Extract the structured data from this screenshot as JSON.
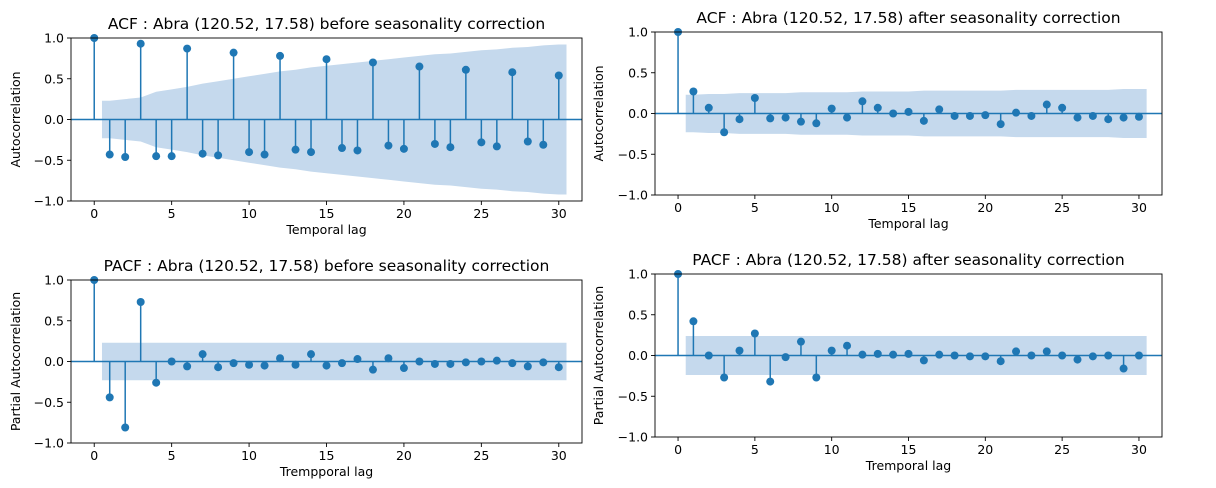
{
  "colors": {
    "stem": "#1f77b4",
    "conf_band": "#c5d9ed",
    "zero_line": "#1f77b4"
  },
  "chart_data": [
    {
      "type": "stem",
      "title": "ACF : Abra (120.52, 17.58) before seasonality correction",
      "xlabel": "Temporal lag",
      "ylabel": "Autocorrelation",
      "xlim": [
        -1.5,
        31.5
      ],
      "ylim": [
        -1.0,
        1.0
      ],
      "xticks": [
        0,
        5,
        10,
        15,
        20,
        25,
        30
      ],
      "xtick_labels": [
        "0",
        "5",
        "10",
        "15",
        "20",
        "25",
        "30"
      ],
      "yticks": [
        -1.0,
        -0.5,
        0.0,
        0.5,
        1.0
      ],
      "ytick_labels": [
        "−1.0",
        "−0.5",
        "0.0",
        "0.5",
        "1.0"
      ],
      "x": [
        0,
        1,
        2,
        3,
        4,
        5,
        6,
        7,
        8,
        9,
        10,
        11,
        12,
        13,
        14,
        15,
        16,
        17,
        18,
        19,
        20,
        21,
        22,
        23,
        24,
        25,
        26,
        27,
        28,
        29,
        30
      ],
      "values": [
        1.0,
        -0.43,
        -0.46,
        0.93,
        -0.45,
        -0.45,
        0.87,
        -0.42,
        -0.44,
        0.82,
        -0.4,
        -0.43,
        0.78,
        -0.37,
        -0.4,
        0.74,
        -0.35,
        -0.38,
        0.7,
        -0.32,
        -0.36,
        0.65,
        -0.3,
        -0.34,
        0.61,
        -0.28,
        -0.33,
        0.58,
        -0.27,
        -0.31,
        0.54
      ],
      "conf_band": [
        0.0,
        0.23,
        0.25,
        0.27,
        0.34,
        0.37,
        0.4,
        0.44,
        0.47,
        0.5,
        0.53,
        0.56,
        0.59,
        0.61,
        0.64,
        0.66,
        0.68,
        0.7,
        0.72,
        0.74,
        0.76,
        0.78,
        0.8,
        0.81,
        0.83,
        0.85,
        0.86,
        0.88,
        0.89,
        0.91,
        0.92
      ]
    },
    {
      "type": "stem",
      "title": "ACF : Abra (120.52, 17.58) after seasonality correction",
      "xlabel": "Temporal lag",
      "ylabel": "Autocorrelation",
      "xlim": [
        -1.5,
        31.5
      ],
      "ylim": [
        -1.0,
        1.0
      ],
      "xticks": [
        0,
        5,
        10,
        15,
        20,
        25,
        30
      ],
      "xtick_labels": [
        "0",
        "5",
        "10",
        "15",
        "20",
        "25",
        "30"
      ],
      "yticks": [
        -1.0,
        -0.5,
        0.0,
        0.5,
        1.0
      ],
      "ytick_labels": [
        "−1.0",
        "−0.5",
        "0.0",
        "0.5",
        "1.0"
      ],
      "x": [
        0,
        1,
        2,
        3,
        4,
        5,
        6,
        7,
        8,
        9,
        10,
        11,
        12,
        13,
        14,
        15,
        16,
        17,
        18,
        19,
        20,
        21,
        22,
        23,
        24,
        25,
        26,
        27,
        28,
        29,
        30
      ],
      "values": [
        1.0,
        0.27,
        0.07,
        -0.23,
        -0.07,
        0.19,
        -0.06,
        -0.05,
        -0.1,
        -0.12,
        0.06,
        -0.05,
        0.15,
        0.07,
        0.0,
        0.02,
        -0.09,
        0.05,
        -0.03,
        -0.03,
        -0.02,
        -0.13,
        0.01,
        -0.03,
        0.11,
        0.07,
        -0.05,
        -0.03,
        -0.07,
        -0.05,
        -0.04
      ],
      "conf_band": [
        0.0,
        0.23,
        0.24,
        0.24,
        0.25,
        0.25,
        0.25,
        0.25,
        0.26,
        0.26,
        0.26,
        0.26,
        0.27,
        0.27,
        0.27,
        0.27,
        0.28,
        0.28,
        0.28,
        0.28,
        0.28,
        0.28,
        0.29,
        0.29,
        0.29,
        0.29,
        0.29,
        0.29,
        0.29,
        0.3,
        0.3
      ]
    },
    {
      "type": "stem",
      "title": "PACF : Abra (120.52, 17.58) before seasonality correction",
      "xlabel": "Trempporal lag",
      "ylabel": "Partial Autocorrelation",
      "xlim": [
        -1.5,
        31.5
      ],
      "ylim": [
        -1.0,
        1.0
      ],
      "xticks": [
        0,
        5,
        10,
        15,
        20,
        25,
        30
      ],
      "xtick_labels": [
        "0",
        "5",
        "10",
        "15",
        "20",
        "25",
        "30"
      ],
      "yticks": [
        -1.0,
        -0.5,
        0.0,
        0.5,
        1.0
      ],
      "ytick_labels": [
        "−1.0",
        "−0.5",
        "0.0",
        "0.5",
        "1.0"
      ],
      "x": [
        0,
        1,
        2,
        3,
        4,
        5,
        6,
        7,
        8,
        9,
        10,
        11,
        12,
        13,
        14,
        15,
        16,
        17,
        18,
        19,
        20,
        21,
        22,
        23,
        24,
        25,
        26,
        27,
        28,
        29,
        30
      ],
      "values": [
        1.0,
        -0.44,
        -0.81,
        0.73,
        -0.26,
        0.0,
        -0.06,
        0.09,
        -0.07,
        -0.02,
        -0.04,
        -0.05,
        0.04,
        -0.04,
        0.09,
        -0.05,
        -0.02,
        0.03,
        -0.1,
        0.04,
        -0.08,
        0.0,
        -0.03,
        -0.03,
        -0.01,
        0.0,
        0.01,
        -0.02,
        -0.06,
        -0.01,
        -0.07
      ],
      "conf_band": [
        0.0,
        0.23,
        0.23,
        0.23,
        0.23,
        0.23,
        0.23,
        0.23,
        0.23,
        0.23,
        0.23,
        0.23,
        0.23,
        0.23,
        0.23,
        0.23,
        0.23,
        0.23,
        0.23,
        0.23,
        0.23,
        0.23,
        0.23,
        0.23,
        0.23,
        0.23,
        0.23,
        0.23,
        0.23,
        0.23,
        0.23
      ]
    },
    {
      "type": "stem",
      "title": "PACF : Abra (120.52, 17.58) after seasonality correction",
      "xlabel": "Tremporal lag",
      "ylabel": "Partial Autocorrelation",
      "xlim": [
        -1.5,
        31.5
      ],
      "ylim": [
        -1.0,
        1.0
      ],
      "xticks": [
        0,
        5,
        10,
        15,
        20,
        25,
        30
      ],
      "xtick_labels": [
        "0",
        "5",
        "10",
        "15",
        "20",
        "25",
        "30"
      ],
      "yticks": [
        -1.0,
        -0.5,
        0.0,
        0.5,
        1.0
      ],
      "ytick_labels": [
        "−1.0",
        "−0.5",
        "0.0",
        "0.5",
        "1.0"
      ],
      "x": [
        0,
        1,
        2,
        3,
        4,
        5,
        6,
        7,
        8,
        9,
        10,
        11,
        12,
        13,
        14,
        15,
        16,
        17,
        18,
        19,
        20,
        21,
        22,
        23,
        24,
        25,
        26,
        27,
        28,
        29,
        30
      ],
      "values": [
        1.0,
        0.42,
        0.0,
        -0.27,
        0.06,
        0.27,
        -0.32,
        -0.02,
        0.17,
        -0.27,
        0.06,
        0.12,
        0.01,
        0.02,
        0.01,
        0.02,
        -0.06,
        0.01,
        0.0,
        -0.01,
        -0.01,
        -0.07,
        0.05,
        0.0,
        0.05,
        0.0,
        -0.05,
        -0.01,
        0.0,
        -0.16,
        0.0
      ],
      "conf_band": [
        0.0,
        0.24,
        0.24,
        0.24,
        0.24,
        0.24,
        0.24,
        0.24,
        0.24,
        0.24,
        0.24,
        0.24,
        0.24,
        0.24,
        0.24,
        0.24,
        0.24,
        0.24,
        0.24,
        0.24,
        0.24,
        0.24,
        0.24,
        0.24,
        0.24,
        0.24,
        0.24,
        0.24,
        0.24,
        0.24,
        0.24
      ]
    }
  ]
}
